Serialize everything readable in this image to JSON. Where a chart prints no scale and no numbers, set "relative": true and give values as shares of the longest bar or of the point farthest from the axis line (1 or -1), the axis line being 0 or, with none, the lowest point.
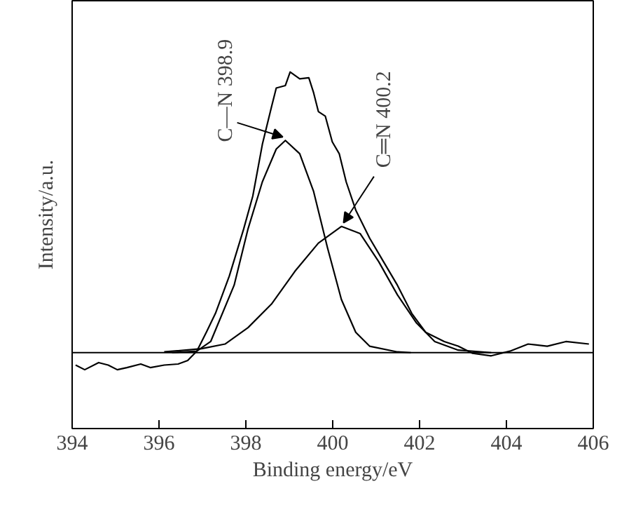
{
  "chart_data": {
    "type": "line",
    "relative": true,
    "xlabel": "Binding energy/eV",
    "ylabel": "Intensity/a.u.",
    "xlim": [
      394,
      406
    ],
    "xticks": [
      394,
      396,
      398,
      400,
      402,
      404,
      406
    ],
    "grid": false,
    "marker": "none",
    "line_style": "solid",
    "annotations": [
      {
        "text": "C—N 398.9",
        "x": 398.9,
        "y": 0.808
      },
      {
        "text": "C═N 400.2",
        "x": 400.2,
        "y": 0.567
      }
    ],
    "series": [
      {
        "color": "#000000",
        "x": [
          394.08,
          394.29,
          394.61,
          394.83,
          395.04,
          395.26,
          395.58,
          395.8,
          396.12,
          396.44,
          396.66,
          396.87,
          397.09,
          397.3,
          397.62,
          397.95,
          398.16,
          398.38,
          398.59,
          398.7,
          398.91,
          399.02,
          399.24,
          399.45,
          399.56,
          399.67,
          399.83,
          399.99,
          400.15,
          400.31,
          400.53,
          400.85,
          401.17,
          401.49,
          401.82,
          402.14,
          402.57,
          402.89,
          403.22,
          403.65,
          404.08,
          404.5,
          404.94,
          405.37,
          405.9
        ],
        "values": [
          0.178,
          0.165,
          0.185,
          0.178,
          0.165,
          0.171,
          0.181,
          0.171,
          0.178,
          0.181,
          0.191,
          0.217,
          0.27,
          0.323,
          0.428,
          0.56,
          0.652,
          0.797,
          0.902,
          0.955,
          0.962,
          1.0,
          0.981,
          0.984,
          0.942,
          0.889,
          0.876,
          0.804,
          0.771,
          0.692,
          0.613,
          0.534,
          0.468,
          0.402,
          0.323,
          0.27,
          0.244,
          0.231,
          0.211,
          0.204,
          0.217,
          0.237,
          0.231,
          0.244,
          0.237
        ]
      },
      {
        "color": "#000000",
        "x": [
          396.3,
          396.87,
          397.19,
          397.73,
          398.05,
          398.38,
          398.7,
          398.91,
          399.24,
          399.56,
          399.88,
          400.2,
          400.53,
          400.85,
          401.49,
          401.8
        ],
        "values": [
          0.213,
          0.217,
          0.244,
          0.402,
          0.56,
          0.692,
          0.784,
          0.808,
          0.771,
          0.665,
          0.507,
          0.362,
          0.27,
          0.231,
          0.215,
          0.213
        ]
      },
      {
        "color": "#000000",
        "x": [
          396.12,
          396.98,
          397.52,
          398.05,
          398.59,
          399.13,
          399.67,
          400.2,
          400.63,
          401.06,
          401.49,
          401.93,
          402.35,
          402.89,
          403.65
        ],
        "values": [
          0.215,
          0.224,
          0.237,
          0.283,
          0.349,
          0.441,
          0.52,
          0.567,
          0.547,
          0.468,
          0.375,
          0.296,
          0.244,
          0.22,
          0.213
        ]
      },
      {
        "color": "#000000",
        "x": [
          394,
          406
        ],
        "values": [
          0.213,
          0.213
        ]
      }
    ]
  }
}
